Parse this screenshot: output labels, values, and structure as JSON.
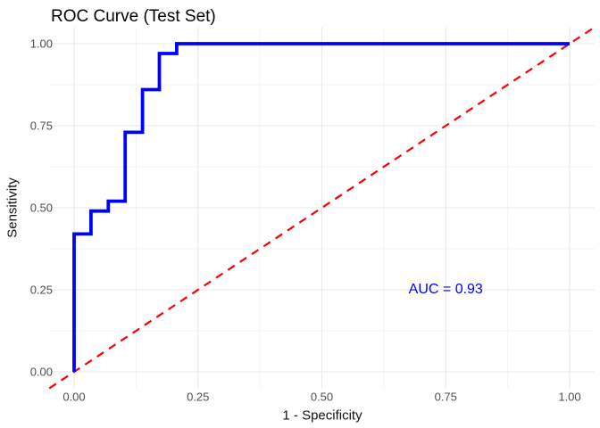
{
  "chart_data": {
    "type": "line",
    "title": "ROC Curve (Test Set)",
    "xlabel": "1 - Specificity",
    "ylabel": "Sensitivity",
    "xlim": [
      -0.05,
      1.05
    ],
    "ylim": [
      -0.05,
      1.05
    ],
    "legend": "none",
    "grid": "major and minor gridlines, no axis lines, no tick marks",
    "x_ticks": {
      "values": [
        0,
        0.25,
        0.5,
        0.75,
        1
      ],
      "labels": [
        "0.00",
        "0.25",
        "0.50",
        "0.75",
        "1.00"
      ]
    },
    "y_ticks": {
      "values": [
        0,
        0.25,
        0.5,
        0.75,
        1
      ],
      "labels": [
        "0.00",
        "0.25",
        "0.50",
        "0.75",
        "1.00"
      ]
    },
    "minor_tick_values": [
      0.125,
      0.375,
      0.625,
      0.875
    ],
    "series": [
      {
        "name": "ROC step curve",
        "type": "step",
        "color": "#0000FF",
        "linewidth": 3.8,
        "points": [
          [
            0,
            0
          ],
          [
            0,
            0.42
          ],
          [
            0.034,
            0.42
          ],
          [
            0.034,
            0.49
          ],
          [
            0.069,
            0.49
          ],
          [
            0.069,
            0.52
          ],
          [
            0.103,
            0.52
          ],
          [
            0.103,
            0.73
          ],
          [
            0.138,
            0.73
          ],
          [
            0.138,
            0.86
          ],
          [
            0.172,
            0.86
          ],
          [
            0.172,
            0.97
          ],
          [
            0.207,
            0.97
          ],
          [
            0.207,
            1.0
          ],
          [
            1.0,
            1.0
          ]
        ]
      },
      {
        "name": "chance diagonal",
        "type": "line",
        "style": "dashed",
        "color": "#FF0000",
        "linewidth": 2.2,
        "points": [
          [
            -0.05,
            -0.05
          ],
          [
            1.05,
            1.05
          ]
        ]
      }
    ],
    "annotation": {
      "text": "AUC = 0.93",
      "x": 0.75,
      "y": 0.25,
      "color": "#0000FF"
    },
    "colors": {
      "background": "#ffffff",
      "grid_major": "#e7e7e7",
      "grid_minor": "#f3f3f3",
      "tick_label": "#4d4d4d",
      "text": "#000000"
    }
  }
}
